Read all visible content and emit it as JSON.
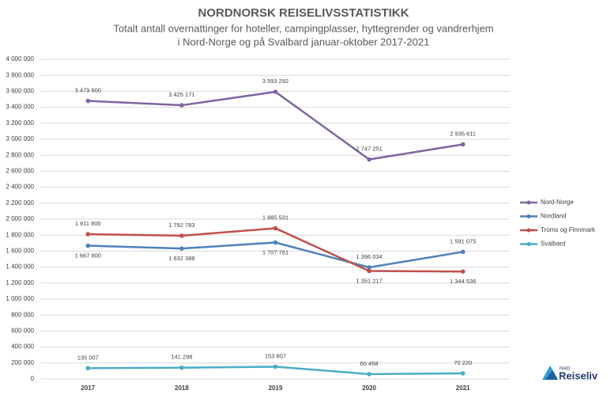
{
  "chart_data": {
    "type": "line",
    "title": "NORDNORSK REISELIVSSTATISTIKK",
    "subtitle": [
      "Totalt antall overnattinger for hoteller, campingplasser, hyttegrender og vandrerhjem",
      "i Nord-Norge og på Svalbard januar-oktober 2017-2021"
    ],
    "categories": [
      "2017",
      "2018",
      "2019",
      "2020",
      "2021"
    ],
    "series": [
      {
        "name": "Nord-Norge",
        "color": "#8064a2",
        "values": [
          3479600,
          3425171,
          3593292,
          2747251,
          2935611
        ],
        "value_labels": [
          "3 479 600",
          "3 425 171",
          "3 593 292",
          "2 747 251",
          "2 935 611"
        ]
      },
      {
        "name": "Nordland",
        "color": "#4f81bd",
        "values": [
          1667800,
          1632388,
          1707761,
          1396034,
          1591075
        ],
        "value_labels": [
          "1 667 800",
          "1 632 388",
          "1 707 761",
          "1 396 034",
          "1 591 075"
        ]
      },
      {
        "name": "Troms og Finnmark",
        "color": "#c0504d",
        "values": [
          1811800,
          1792783,
          1885531,
          1351217,
          1344536
        ],
        "value_labels": [
          "1 811 800",
          "1 792 783",
          "1 885 531",
          "1 351 217",
          "1 344 536"
        ]
      },
      {
        "name": "Svalbard",
        "color": "#4bacc6",
        "values": [
          135007,
          141298,
          153807,
          60468,
          70220
        ],
        "value_labels": [
          "135 007",
          "141 298",
          "153 807",
          "60 468",
          "70 220"
        ]
      }
    ],
    "ylim": [
      0,
      4000000
    ],
    "yticks": [
      0,
      {
        "value": 200000,
        "label": "200 000"
      },
      {
        "value": 400000,
        "label": "400 000"
      },
      {
        "value": 600000,
        "label": "600 000"
      },
      {
        "value": 800000,
        "label": "800 000"
      },
      {
        "value": 1000000,
        "label": "1 000 000"
      },
      {
        "value": 1200000,
        "label": "1 200 000"
      },
      {
        "value": 1400000,
        "label": "1 400 000"
      },
      {
        "value": 1600000,
        "label": "1 600 000"
      },
      {
        "value": 1800000,
        "label": "1 800 000"
      },
      {
        "value": 2000000,
        "label": "2 000 000"
      },
      {
        "value": 2200000,
        "label": "2 200 000"
      },
      {
        "value": 2400000,
        "label": "2 400 000"
      },
      {
        "value": 2600000,
        "label": "2 600 000"
      },
      {
        "value": 2800000,
        "label": "2 800 000"
      },
      {
        "value": 3000000,
        "label": "3 000 000"
      },
      {
        "value": 3200000,
        "label": "3 200 000"
      },
      {
        "value": 3400000,
        "label": "3 400 000"
      },
      {
        "value": 3600000,
        "label": "3 600 000"
      },
      {
        "value": 3800000,
        "label": "3 800 000"
      },
      {
        "value": 4000000,
        "label": "4 000 000"
      }
    ],
    "grid": true,
    "legend": "right"
  },
  "logo": {
    "small": "NHO",
    "text": "Reiseliv"
  }
}
